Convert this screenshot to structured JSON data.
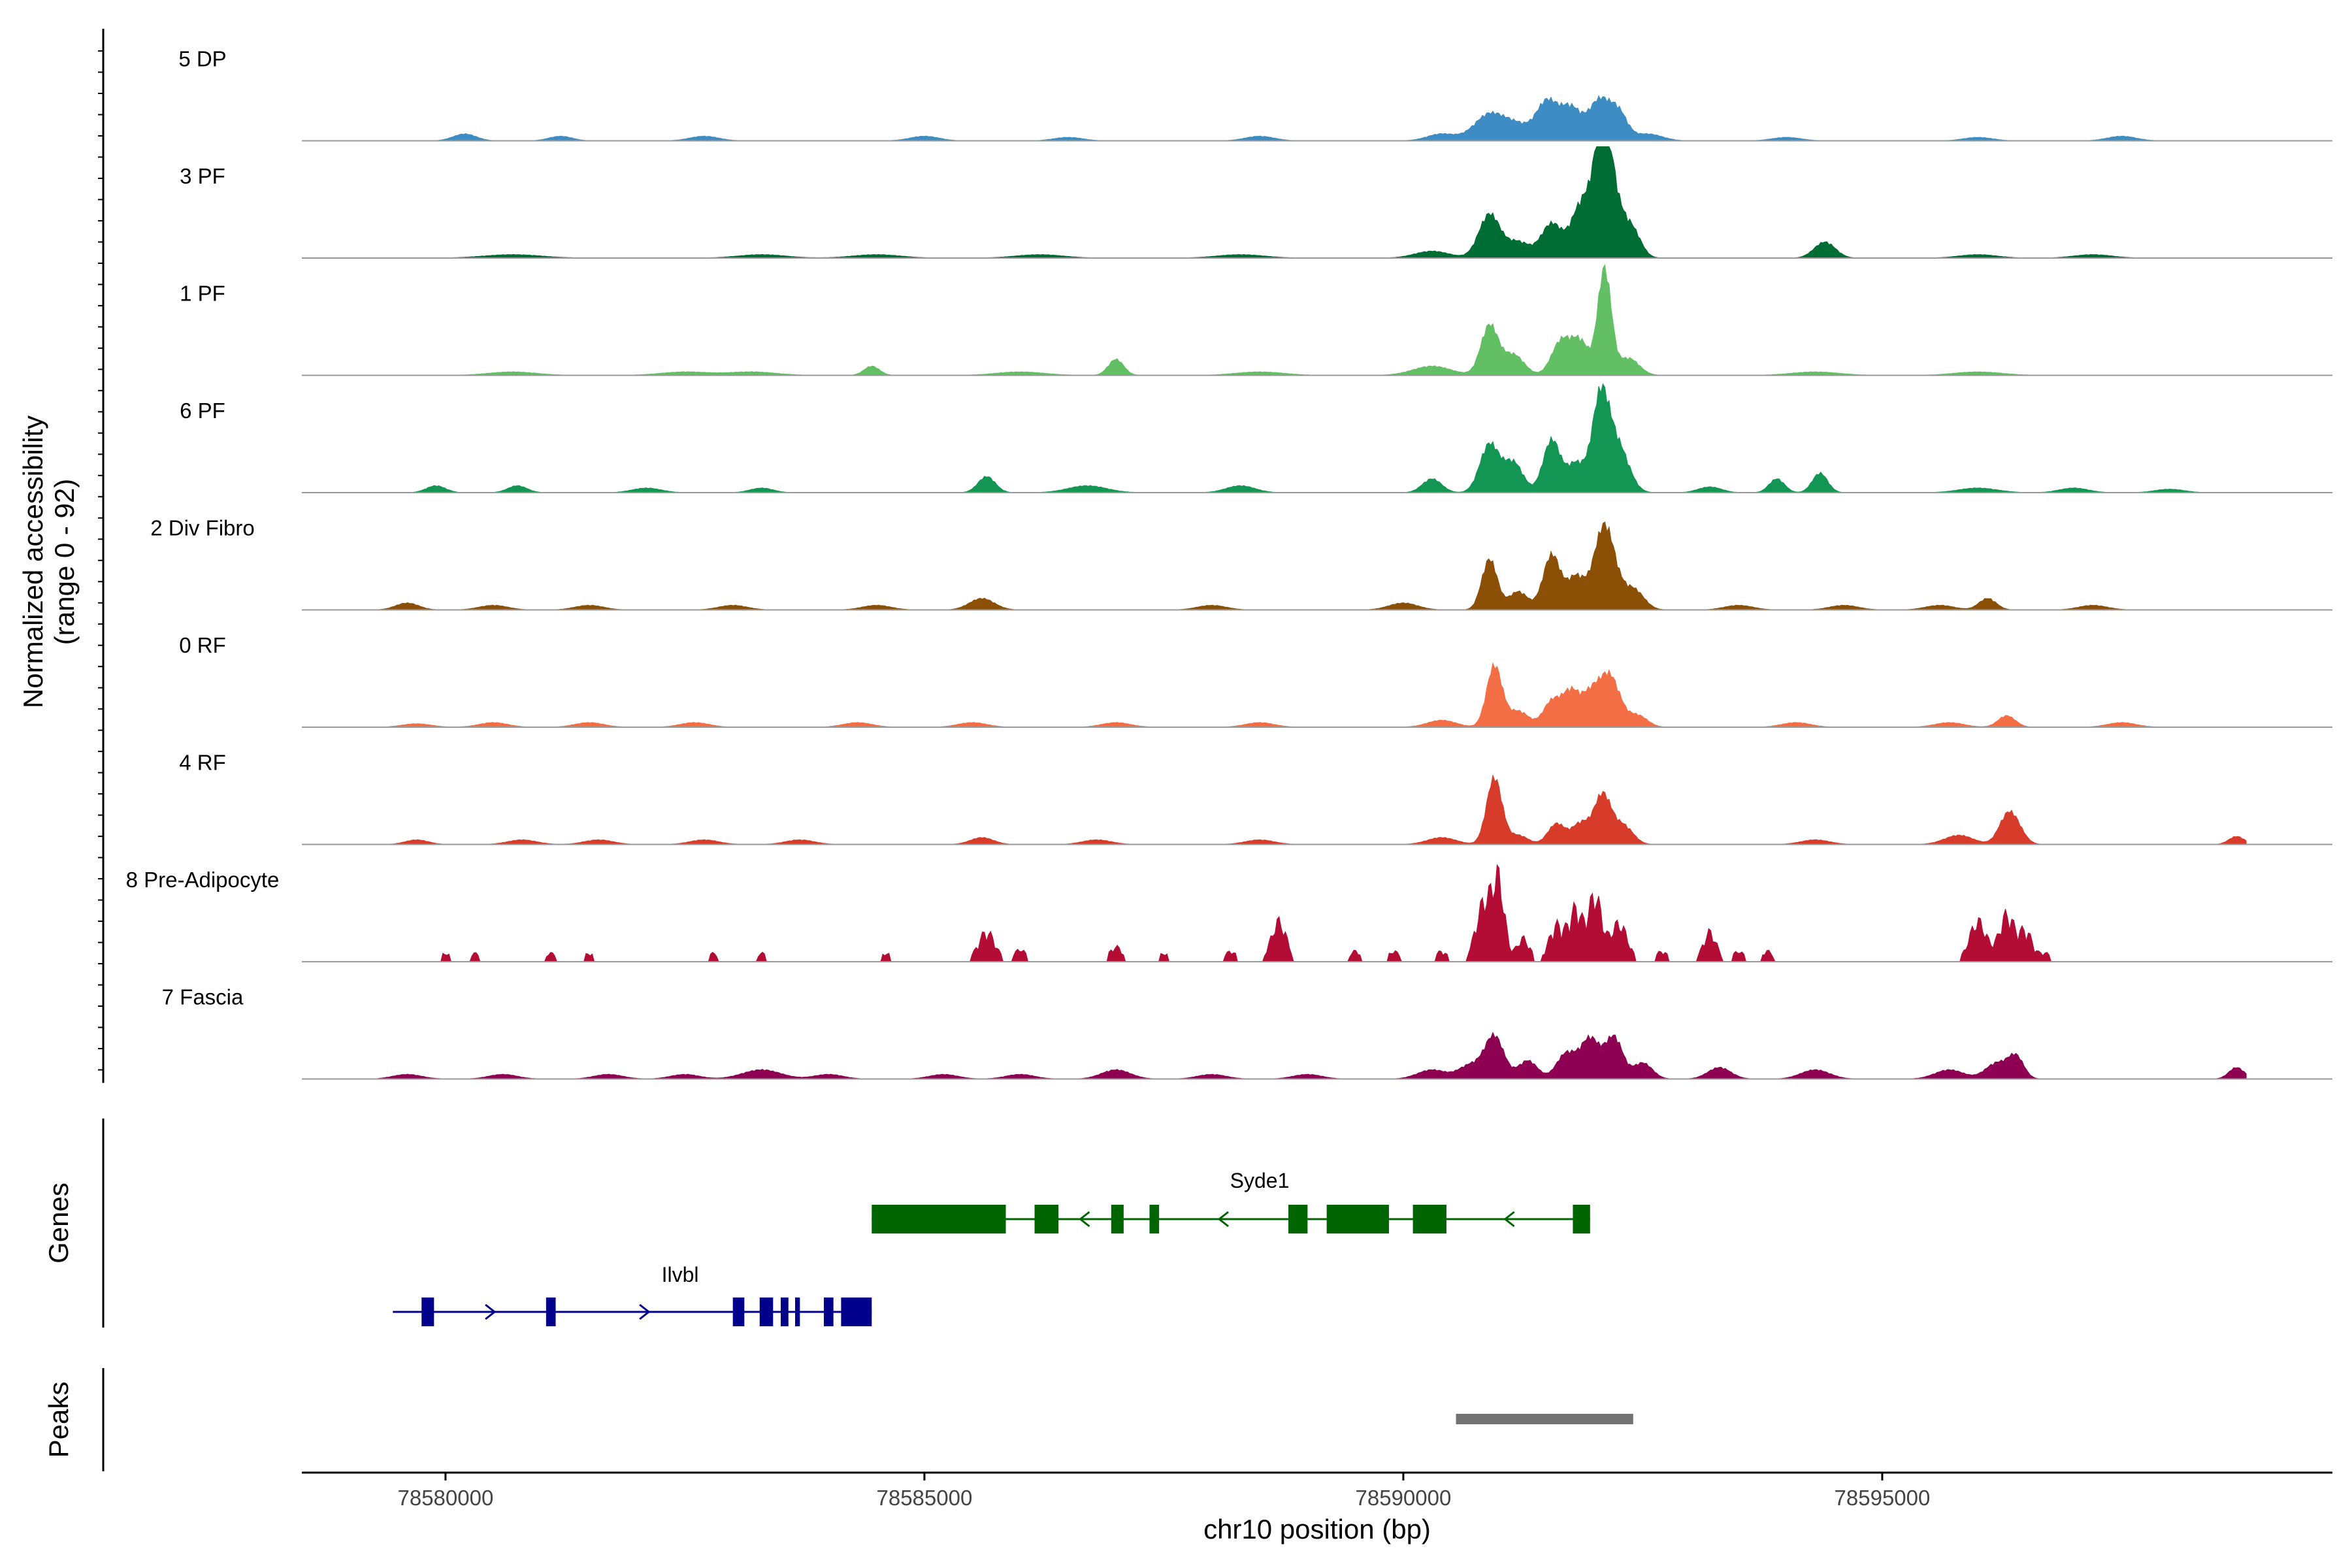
{
  "chart_data": {
    "type": "coverage-track",
    "title": "",
    "xlabel": "chr10 position (bp)",
    "ylabel_line1": "Normalized accessibility",
    "ylabel_line2": "(range 0 - 92)",
    "ylim": [
      0,
      92
    ],
    "xlim": [
      78578500,
      78599700
    ],
    "x_ticks": [
      78580000,
      78585000,
      78590000,
      78595000
    ],
    "x_tick_labels": [
      "78580000",
      "78585000",
      "78590000",
      "78595000"
    ],
    "data_range": [
      78579300,
      78598800
    ],
    "panel_titles": {
      "genes": "Genes",
      "peaks": "Peaks"
    },
    "tracks": [
      {
        "name": "5 DP",
        "color": "#3d8dc4",
        "jagged": false,
        "peaks": [
          [
            78580200,
            6,
            120
          ],
          [
            78581200,
            4,
            120
          ],
          [
            78582700,
            4,
            150
          ],
          [
            78585000,
            4,
            150
          ],
          [
            78586500,
            3,
            150
          ],
          [
            78588500,
            4,
            150
          ],
          [
            78590400,
            6,
            150
          ],
          [
            78590900,
            23,
            160
          ],
          [
            78591200,
            12,
            140
          ],
          [
            78591500,
            33,
            110
          ],
          [
            78591750,
            28,
            110
          ],
          [
            78592050,
            35,
            110
          ],
          [
            78592250,
            22,
            90
          ],
          [
            78592550,
            6,
            150
          ],
          [
            78594000,
            3,
            150
          ],
          [
            78596000,
            3,
            150
          ],
          [
            78597500,
            4,
            150
          ]
        ]
      },
      {
        "name": "3 PF",
        "color": "#006d35",
        "jagged": false,
        "peaks": [
          [
            78580700,
            3,
            300
          ],
          [
            78583300,
            3,
            250
          ],
          [
            78584500,
            3,
            250
          ],
          [
            78586200,
            3,
            250
          ],
          [
            78588300,
            3,
            250
          ],
          [
            78590300,
            6,
            180
          ],
          [
            78590900,
            38,
            110
          ],
          [
            78591200,
            14,
            120
          ],
          [
            78591550,
            30,
            110
          ],
          [
            78591850,
            42,
            100
          ],
          [
            78592080,
            76,
            90
          ],
          [
            78592150,
            50,
            140
          ],
          [
            78592400,
            18,
            90
          ],
          [
            78594400,
            14,
            110
          ],
          [
            78596000,
            3,
            200
          ],
          [
            78597200,
            3,
            200
          ]
        ]
      },
      {
        "name": "1 PF",
        "color": "#63bf63",
        "jagged": false,
        "peaks": [
          [
            78580700,
            3,
            250
          ],
          [
            78582500,
            3,
            250
          ],
          [
            78583200,
            3,
            250
          ],
          [
            78584450,
            8,
            80
          ],
          [
            78586000,
            3,
            250
          ],
          [
            78587000,
            14,
            80
          ],
          [
            78588500,
            3,
            250
          ],
          [
            78590300,
            8,
            200
          ],
          [
            78590900,
            43,
            90
          ],
          [
            78591150,
            18,
            110
          ],
          [
            78591650,
            30,
            100
          ],
          [
            78591850,
            28,
            90
          ],
          [
            78592100,
            92,
            70
          ],
          [
            78592350,
            15,
            110
          ],
          [
            78594300,
            3,
            250
          ],
          [
            78596000,
            3,
            250
          ]
        ]
      },
      {
        "name": "6 PF",
        "color": "#139554",
        "jagged": false,
        "peaks": [
          [
            78579900,
            6,
            100
          ],
          [
            78580750,
            6,
            100
          ],
          [
            78582100,
            4,
            150
          ],
          [
            78583300,
            4,
            120
          ],
          [
            78585650,
            14,
            90
          ],
          [
            78586700,
            6,
            200
          ],
          [
            78588300,
            6,
            150
          ],
          [
            78590300,
            12,
            100
          ],
          [
            78590900,
            42,
            100
          ],
          [
            78591150,
            26,
            100
          ],
          [
            78591550,
            46,
            90
          ],
          [
            78591800,
            25,
            90
          ],
          [
            78592060,
            83,
            90
          ],
          [
            78592250,
            38,
            110
          ],
          [
            78593200,
            5,
            120
          ],
          [
            78593900,
            12,
            80
          ],
          [
            78594350,
            17,
            80
          ],
          [
            78596000,
            4,
            200
          ],
          [
            78597000,
            4,
            150
          ],
          [
            78598000,
            3,
            150
          ]
        ]
      },
      {
        "name": "2 Div Fibro",
        "color": "#8b4f06",
        "jagged": false,
        "peaks": [
          [
            78579600,
            6,
            120
          ],
          [
            78580500,
            4,
            150
          ],
          [
            78581500,
            4,
            150
          ],
          [
            78583000,
            4,
            150
          ],
          [
            78584500,
            4,
            150
          ],
          [
            78585600,
            10,
            130
          ],
          [
            78588000,
            4,
            150
          ],
          [
            78590000,
            6,
            150
          ],
          [
            78590900,
            44,
            80
          ],
          [
            78591200,
            16,
            100
          ],
          [
            78591550,
            48,
            90
          ],
          [
            78591800,
            28,
            90
          ],
          [
            78592100,
            74,
            110
          ],
          [
            78592400,
            18,
            110
          ],
          [
            78593500,
            4,
            150
          ],
          [
            78594600,
            4,
            150
          ],
          [
            78595600,
            4,
            150
          ],
          [
            78596100,
            10,
            90
          ],
          [
            78597200,
            4,
            150
          ]
        ]
      },
      {
        "name": "0 RF",
        "color": "#f46e45",
        "jagged": false,
        "peaks": [
          [
            78579700,
            3,
            150
          ],
          [
            78580500,
            4,
            150
          ],
          [
            78581500,
            4,
            150
          ],
          [
            78582600,
            4,
            150
          ],
          [
            78584300,
            4,
            150
          ],
          [
            78585500,
            4,
            150
          ],
          [
            78587000,
            4,
            150
          ],
          [
            78588500,
            4,
            150
          ],
          [
            78590400,
            6,
            150
          ],
          [
            78590950,
            53,
            80
          ],
          [
            78591200,
            14,
            110
          ],
          [
            78591550,
            22,
            90
          ],
          [
            78591750,
            30,
            90
          ],
          [
            78591950,
            24,
            90
          ],
          [
            78592150,
            45,
            110
          ],
          [
            78592450,
            10,
            100
          ],
          [
            78594100,
            4,
            150
          ],
          [
            78595700,
            4,
            150
          ],
          [
            78596300,
            10,
            90
          ],
          [
            78597500,
            4,
            150
          ]
        ]
      },
      {
        "name": "4 RF",
        "color": "#d73b29",
        "jagged": false,
        "peaks": [
          [
            78579700,
            4,
            120
          ],
          [
            78580800,
            4,
            150
          ],
          [
            78581600,
            4,
            150
          ],
          [
            78582700,
            4,
            150
          ],
          [
            78583700,
            4,
            150
          ],
          [
            78585600,
            6,
            120
          ],
          [
            78586800,
            4,
            150
          ],
          [
            78588500,
            4,
            150
          ],
          [
            78590400,
            6,
            150
          ],
          [
            78590950,
            58,
            80
          ],
          [
            78591200,
            8,
            100
          ],
          [
            78591600,
            18,
            90
          ],
          [
            78591850,
            18,
            90
          ],
          [
            78592080,
            43,
            90
          ],
          [
            78592300,
            16,
            100
          ],
          [
            78594300,
            4,
            150
          ],
          [
            78595800,
            8,
            150
          ],
          [
            78596300,
            21,
            90
          ],
          [
            78596400,
            12,
            90
          ],
          [
            78598700,
            7,
            80
          ]
        ]
      },
      {
        "name": "8 Pre-Adipocyte",
        "color": "#b30d36",
        "jagged": true,
        "peaks": [
          [
            78580000,
            8,
            60
          ],
          [
            78580300,
            8,
            60
          ],
          [
            78581100,
            8,
            60
          ],
          [
            78581500,
            8,
            60
          ],
          [
            78582800,
            8,
            60
          ],
          [
            78583300,
            8,
            60
          ],
          [
            78584600,
            8,
            60
          ],
          [
            78585650,
            28,
            90
          ],
          [
            78586000,
            12,
            60
          ],
          [
            78587000,
            14,
            70
          ],
          [
            78587500,
            8,
            60
          ],
          [
            78588200,
            10,
            60
          ],
          [
            78588700,
            38,
            80
          ],
          [
            78589500,
            10,
            60
          ],
          [
            78589900,
            10,
            60
          ],
          [
            78590400,
            10,
            60
          ],
          [
            78590850,
            57,
            90
          ],
          [
            78591000,
            66,
            60
          ],
          [
            78591250,
            22,
            70
          ],
          [
            78591600,
            34,
            80
          ],
          [
            78591800,
            48,
            70
          ],
          [
            78592000,
            62,
            70
          ],
          [
            78592250,
            36,
            90
          ],
          [
            78592700,
            10,
            60
          ],
          [
            78593200,
            28,
            70
          ],
          [
            78593500,
            10,
            60
          ],
          [
            78593800,
            10,
            60
          ],
          [
            78596000,
            38,
            90
          ],
          [
            78596300,
            44,
            80
          ],
          [
            78596500,
            28,
            70
          ],
          [
            78596700,
            8,
            60
          ]
        ]
      },
      {
        "name": "7 Fascia",
        "color": "#8e0052",
        "jagged": false,
        "peaks": [
          [
            78579600,
            4,
            150
          ],
          [
            78580600,
            4,
            150
          ],
          [
            78581700,
            4,
            150
          ],
          [
            78582500,
            4,
            150
          ],
          [
            78583300,
            8,
            200
          ],
          [
            78584000,
            4,
            150
          ],
          [
            78585200,
            4,
            150
          ],
          [
            78586000,
            4,
            150
          ],
          [
            78587000,
            8,
            150
          ],
          [
            78588000,
            4,
            150
          ],
          [
            78589000,
            4,
            150
          ],
          [
            78590300,
            8,
            150
          ],
          [
            78590700,
            12,
            120
          ],
          [
            78590950,
            37,
            100
          ],
          [
            78591300,
            16,
            100
          ],
          [
            78591700,
            22,
            100
          ],
          [
            78591950,
            35,
            100
          ],
          [
            78592200,
            36,
            90
          ],
          [
            78592500,
            14,
            100
          ],
          [
            78593300,
            10,
            120
          ],
          [
            78594300,
            8,
            150
          ],
          [
            78595700,
            8,
            150
          ],
          [
            78596200,
            14,
            120
          ],
          [
            78596400,
            18,
            80
          ],
          [
            78598700,
            10,
            80
          ]
        ]
      }
    ],
    "genes": [
      {
        "name": "Syde1",
        "color": "#006400",
        "strand": "-",
        "start": 78584450,
        "end": 78591950,
        "exons": [
          [
            78584450,
            78585850
          ],
          [
            78586150,
            78586400
          ],
          [
            78586950,
            78587080
          ],
          [
            78587350,
            78587450
          ],
          [
            78588800,
            78589000
          ],
          [
            78589200,
            78589850
          ],
          [
            78590100,
            78590450
          ],
          [
            78591770,
            78591950
          ]
        ]
      },
      {
        "name": "Ilvbl",
        "color": "#00008b",
        "strand": "+",
        "start": 78579450,
        "end": 78584450,
        "exons": [
          [
            78579750,
            78579880
          ],
          [
            78581050,
            78581150
          ],
          [
            78583000,
            78583120
          ],
          [
            78583280,
            78583420
          ],
          [
            78583500,
            78583580
          ],
          [
            78583650,
            78583700
          ],
          [
            78583950,
            78584050
          ],
          [
            78584130,
            78584450
          ]
        ]
      }
    ],
    "peaks_track": [
      {
        "start": 78590550,
        "end": 78592400,
        "color": "#737373"
      }
    ]
  }
}
